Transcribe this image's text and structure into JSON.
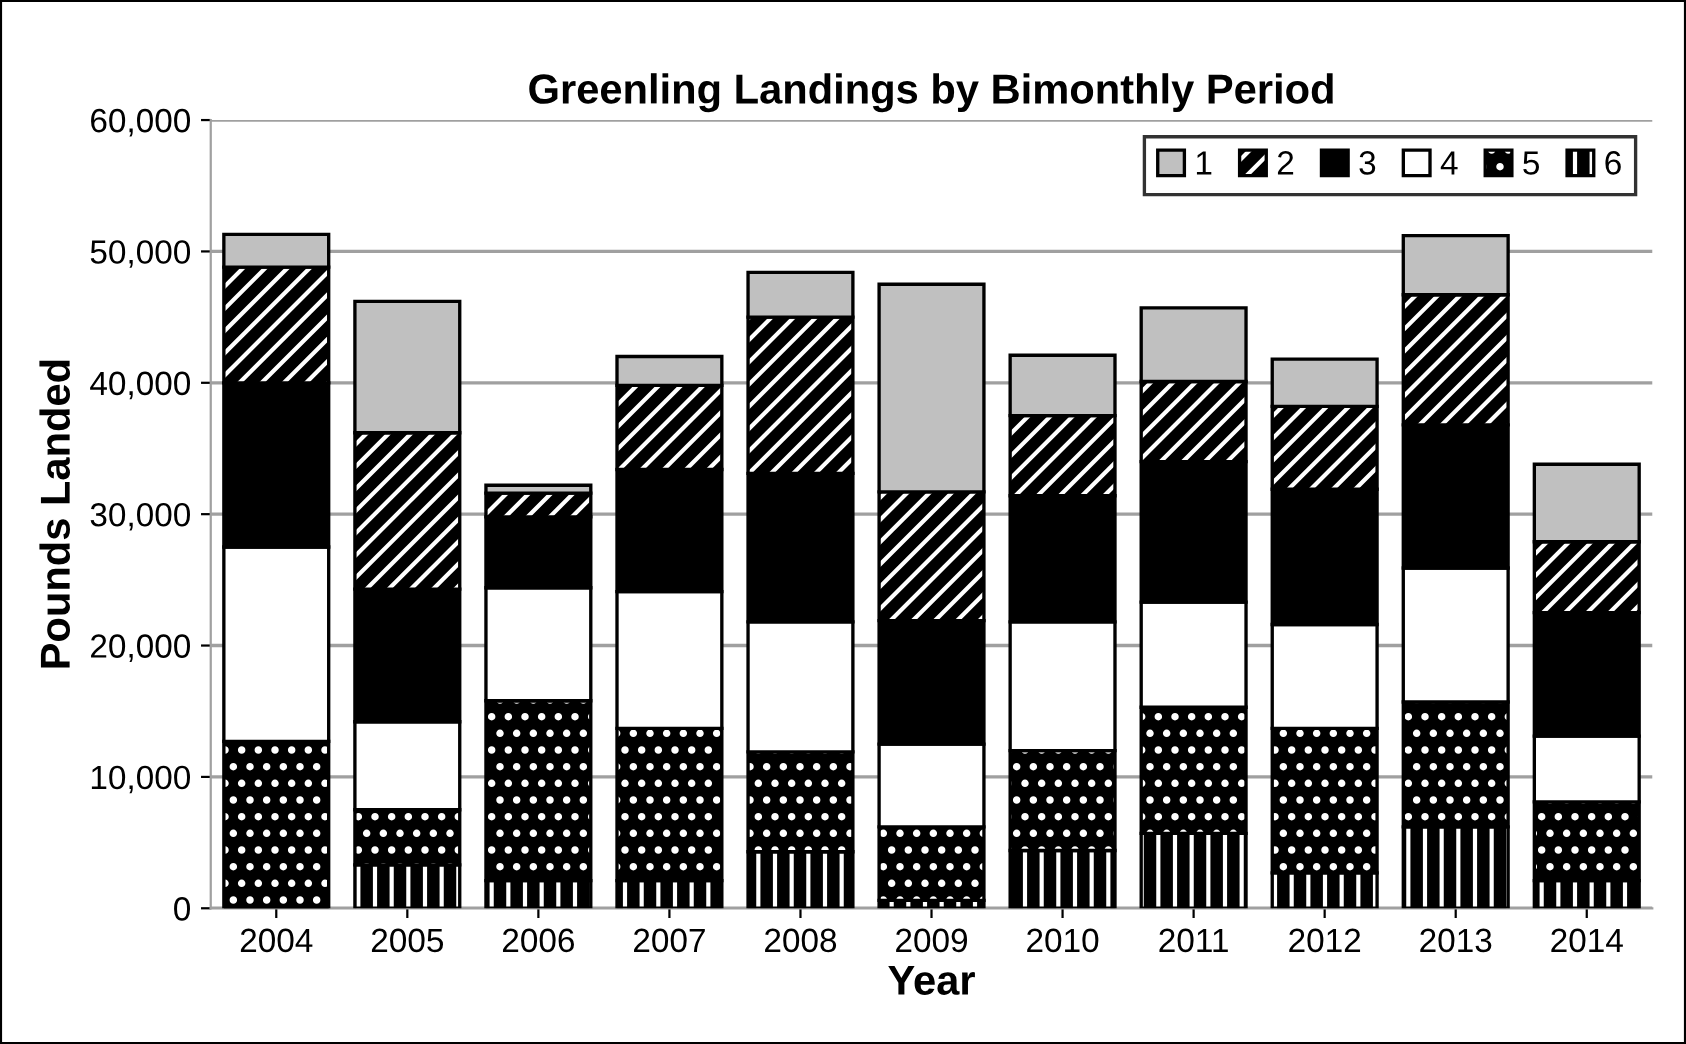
{
  "chart_data": {
    "type": "bar",
    "stacked": true,
    "title": "Greenling Landings by Bimonthly Period",
    "xlabel": "Year",
    "ylabel": "Pounds Landed",
    "categories": [
      "2004",
      "2005",
      "2006",
      "2007",
      "2008",
      "2009",
      "2010",
      "2011",
      "2012",
      "2013",
      "2014"
    ],
    "series": [
      {
        "name": "6",
        "color": "#000000",
        "values": [
          0,
          3300,
          2100,
          2100,
          4300,
          600,
          4400,
          5700,
          2700,
          6200,
          2100
        ]
      },
      {
        "name": "5",
        "color": "#000000",
        "values": [
          12700,
          4200,
          13700,
          11600,
          7600,
          5600,
          7600,
          9600,
          11000,
          9500,
          6000
        ]
      },
      {
        "name": "4",
        "color": "#ffffff",
        "values": [
          14800,
          6700,
          8600,
          10400,
          9900,
          6300,
          9800,
          8000,
          7900,
          10200,
          5000
        ]
      },
      {
        "name": "3",
        "color": "#000000",
        "values": [
          12500,
          10100,
          5400,
          9300,
          11300,
          9400,
          9600,
          10700,
          10300,
          10900,
          9400
        ]
      },
      {
        "name": "2",
        "color": "#000000",
        "values": [
          8800,
          11900,
          1800,
          6400,
          11900,
          9800,
          6100,
          6100,
          6300,
          9900,
          5400
        ]
      },
      {
        "name": "1",
        "color": "#c0c0c0",
        "values": [
          2500,
          10000,
          600,
          2200,
          3400,
          15800,
          4600,
          5600,
          3600,
          4500,
          5900
        ]
      }
    ],
    "ylim": [
      0,
      60000
    ],
    "yticks": [
      {
        "value": 0,
        "label": "0"
      },
      {
        "value": 10000,
        "label": "10,000"
      },
      {
        "value": 20000,
        "label": "20,000"
      },
      {
        "value": 30000,
        "label": "30,000"
      },
      {
        "value": 40000,
        "label": "40,000"
      },
      {
        "value": 50000,
        "label": "50,000"
      },
      {
        "value": 60000,
        "label": "60,000"
      }
    ],
    "grid": "y",
    "legend": "top right"
  }
}
